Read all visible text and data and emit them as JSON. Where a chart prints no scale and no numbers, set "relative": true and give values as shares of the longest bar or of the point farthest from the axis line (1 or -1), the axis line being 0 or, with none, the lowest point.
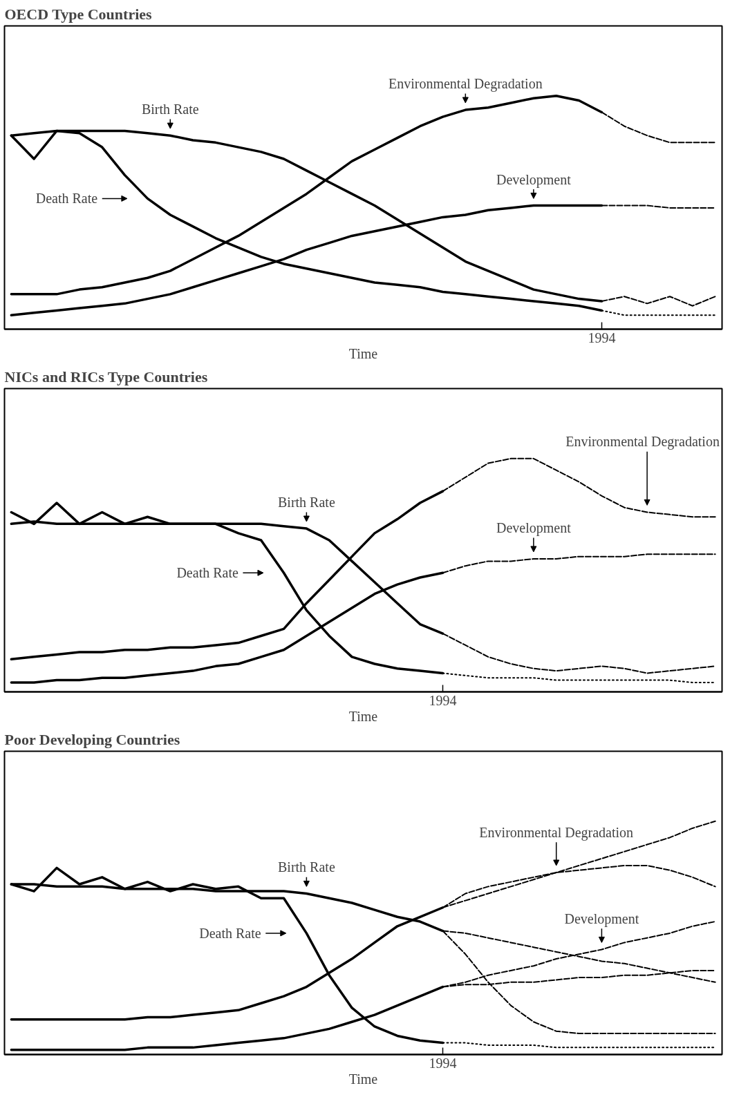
{
  "chart_data": [
    {
      "type": "line",
      "title": "OECD Type Countries",
      "xlabel": "Time",
      "relative": true,
      "annotations": [
        "1994"
      ],
      "categories": [
        null,
        null,
        null,
        null,
        null,
        null,
        null,
        null,
        null,
        null,
        null,
        null,
        null,
        null,
        null,
        null,
        null,
        null,
        null,
        null,
        null,
        null,
        null,
        null,
        null,
        null,
        null,
        null,
        null,
        null,
        null,
        null
      ],
      "series": [
        {
          "name": "Birth Rate",
          "color": "#000000",
          "line_style": "solid",
          "values": [
            0.83,
            0.84,
            0.85,
            0.85,
            0.85,
            0.85,
            0.84,
            0.83,
            0.81,
            0.8,
            0.78,
            0.76,
            0.73,
            0.68,
            0.63,
            0.58,
            0.53,
            0.47,
            0.41,
            0.35,
            0.29,
            0.25,
            0.21,
            0.17,
            0.15,
            0.13,
            0.12,
            null,
            null,
            null,
            null,
            null
          ]
        },
        {
          "name": "Death Rate",
          "color": "#000000",
          "line_style": "solid",
          "values": [
            0.83,
            0.73,
            0.85,
            0.84,
            0.78,
            0.66,
            0.56,
            0.49,
            0.44,
            0.39,
            0.35,
            0.31,
            0.28,
            0.26,
            0.24,
            0.22,
            0.2,
            0.19,
            0.18,
            0.16,
            0.15,
            0.14,
            0.13,
            0.12,
            0.11,
            0.1,
            0.08,
            null,
            null,
            null,
            null,
            null
          ]
        },
        {
          "name": "Environmental Degradation",
          "color": "#000000",
          "line_style": "solid",
          "values": [
            0.15,
            0.15,
            0.15,
            0.17,
            0.18,
            0.2,
            0.22,
            0.25,
            0.3,
            0.35,
            0.4,
            0.46,
            0.52,
            0.58,
            0.65,
            0.72,
            0.77,
            0.82,
            0.87,
            0.91,
            0.94,
            0.95,
            0.97,
            0.99,
            1,
            0.98,
            0.93,
            null,
            null,
            null,
            null,
            null
          ]
        },
        {
          "name": "Development",
          "color": "#000000",
          "line_style": "solid",
          "values": [
            0.06,
            0.07,
            0.08,
            0.09,
            0.1,
            0.11,
            0.13,
            0.15,
            0.18,
            0.21,
            0.24,
            0.27,
            0.3,
            0.34,
            0.37,
            0.4,
            0.42,
            0.44,
            0.46,
            0.48,
            0.49,
            0.51,
            0.52,
            0.53,
            0.53,
            0.53,
            0.53,
            null,
            null,
            null,
            null,
            null
          ]
        },
        {
          "color": "#000000",
          "line_style": "dashed",
          "values": [
            null,
            null,
            null,
            null,
            null,
            null,
            null,
            null,
            null,
            null,
            null,
            null,
            null,
            null,
            null,
            null,
            null,
            null,
            null,
            null,
            null,
            null,
            null,
            null,
            null,
            null,
            0.12,
            0.14,
            0.11,
            0.14,
            0.1,
            0.14
          ]
        },
        {
          "color": "#000000",
          "line_style": "dotted",
          "values": [
            null,
            null,
            null,
            null,
            null,
            null,
            null,
            null,
            null,
            null,
            null,
            null,
            null,
            null,
            null,
            null,
            null,
            null,
            null,
            null,
            null,
            null,
            null,
            null,
            null,
            null,
            0.08,
            0.06,
            0.06,
            0.06,
            0.06,
            0.06
          ]
        },
        {
          "color": "#000000",
          "line_style": "dashed",
          "values": [
            null,
            null,
            null,
            null,
            null,
            null,
            null,
            null,
            null,
            null,
            null,
            null,
            null,
            null,
            null,
            null,
            null,
            null,
            null,
            null,
            null,
            null,
            null,
            null,
            null,
            null,
            0.93,
            0.87,
            0.83,
            0.8,
            0.8,
            0.8
          ]
        },
        {
          "color": "#000000",
          "line_style": "dashed",
          "values": [
            null,
            null,
            null,
            null,
            null,
            null,
            null,
            null,
            null,
            null,
            null,
            null,
            null,
            null,
            null,
            null,
            null,
            null,
            null,
            null,
            null,
            null,
            null,
            null,
            null,
            null,
            0.53,
            0.53,
            0.53,
            0.52,
            0.52,
            0.52
          ]
        }
      ]
    },
    {
      "type": "line",
      "title": "NICs and RICs Type Countries",
      "xlabel": "Time",
      "relative": true,
      "annotations": [
        "1994"
      ],
      "categories": [
        null,
        null,
        null,
        null,
        null,
        null,
        null,
        null,
        null,
        null,
        null,
        null,
        null,
        null,
        null,
        null,
        null,
        null,
        null,
        null,
        null,
        null,
        null,
        null,
        null,
        null,
        null,
        null,
        null,
        null,
        null,
        null
      ],
      "series": [
        {
          "name": "Birth Rate",
          "color": "#000000",
          "line_style": "solid",
          "values": [
            0.72,
            0.73,
            0.72,
            0.72,
            0.72,
            0.72,
            0.72,
            0.72,
            0.72,
            0.72,
            0.72,
            0.72,
            0.71,
            0.7,
            0.65,
            0.56,
            0.47,
            0.38,
            0.29,
            0.25,
            null,
            null,
            null,
            null,
            null,
            null,
            null,
            null,
            null,
            null,
            null,
            null
          ]
        },
        {
          "name": "Death Rate",
          "color": "#000000",
          "line_style": "solid",
          "values": [
            0.77,
            0.72,
            0.81,
            0.72,
            0.77,
            0.72,
            0.75,
            0.72,
            0.72,
            0.72,
            0.68,
            0.65,
            0.51,
            0.35,
            0.24,
            0.15,
            0.12,
            0.1,
            0.09,
            0.08,
            null,
            null,
            null,
            null,
            null,
            null,
            null,
            null,
            null,
            null,
            null,
            null
          ]
        },
        {
          "color": "#000000",
          "line_style": "solid",
          "values": [
            0.14,
            0.15,
            0.16,
            0.17,
            0.17,
            0.18,
            0.18,
            0.19,
            0.19,
            0.2,
            0.21,
            0.24,
            0.27,
            0.38,
            0.48,
            0.58,
            0.68,
            0.74,
            0.81,
            0.86,
            null,
            null,
            null,
            null,
            null,
            null,
            null,
            null,
            null,
            null,
            null,
            null
          ]
        },
        {
          "color": "#000000",
          "line_style": "solid",
          "values": [
            0.04,
            0.04,
            0.05,
            0.05,
            0.06,
            0.06,
            0.07,
            0.08,
            0.09,
            0.11,
            0.12,
            0.15,
            0.18,
            0.24,
            0.3,
            0.36,
            0.42,
            0.46,
            0.49,
            0.51,
            null,
            null,
            null,
            null,
            null,
            null,
            null,
            null,
            null,
            null,
            null,
            null
          ]
        },
        {
          "color": "#000000",
          "line_style": "dashed",
          "values": [
            null,
            null,
            null,
            null,
            null,
            null,
            null,
            null,
            null,
            null,
            null,
            null,
            null,
            null,
            null,
            null,
            null,
            null,
            null,
            0.25,
            0.2,
            0.15,
            0.12,
            0.1,
            0.09,
            0.1,
            0.11,
            0.1,
            0.08,
            0.09,
            0.1,
            0.11
          ]
        },
        {
          "color": "#000000",
          "line_style": "dotted",
          "values": [
            null,
            null,
            null,
            null,
            null,
            null,
            null,
            null,
            null,
            null,
            null,
            null,
            null,
            null,
            null,
            null,
            null,
            null,
            null,
            0.08,
            0.07,
            0.06,
            0.06,
            0.06,
            0.05,
            0.05,
            0.05,
            0.05,
            0.05,
            0.05,
            0.04,
            0.04
          ]
        },
        {
          "name": "Environmental Degradation",
          "color": "#000000",
          "line_style": "dashed",
          "values": [
            null,
            null,
            null,
            null,
            null,
            null,
            null,
            null,
            null,
            null,
            null,
            null,
            null,
            null,
            null,
            null,
            null,
            null,
            null,
            0.86,
            0.92,
            0.98,
            1,
            1,
            0.95,
            0.9,
            0.84,
            0.79,
            0.77,
            0.76,
            0.75,
            0.75
          ]
        },
        {
          "name": "Development",
          "color": "#000000",
          "line_style": "dashed",
          "values": [
            null,
            null,
            null,
            null,
            null,
            null,
            null,
            null,
            null,
            null,
            null,
            null,
            null,
            null,
            null,
            null,
            null,
            null,
            null,
            0.51,
            0.54,
            0.56,
            0.56,
            0.57,
            0.57,
            0.58,
            0.58,
            0.58,
            0.59,
            0.59,
            0.59,
            0.59
          ]
        }
      ]
    },
    {
      "type": "line",
      "title": "Poor Developing Countries",
      "xlabel": "Time",
      "relative": true,
      "annotations": [
        "1994"
      ],
      "categories": [
        null,
        null,
        null,
        null,
        null,
        null,
        null,
        null,
        null,
        null,
        null,
        null,
        null,
        null,
        null,
        null,
        null,
        null,
        null,
        null,
        null,
        null,
        null,
        null,
        null,
        null,
        null,
        null,
        null,
        null,
        null,
        null
      ],
      "series": [
        {
          "name": "Birth Rate",
          "color": "#000000",
          "line_style": "solid",
          "values": [
            0.73,
            0.73,
            0.72,
            0.72,
            0.72,
            0.71,
            0.71,
            0.71,
            0.71,
            0.7,
            0.7,
            0.7,
            0.7,
            0.69,
            0.67,
            0.65,
            0.62,
            0.59,
            0.57,
            0.53,
            null,
            null,
            null,
            null,
            null,
            null,
            null,
            null,
            null,
            null,
            null,
            null
          ]
        },
        {
          "name": "Death Rate",
          "color": "#000000",
          "line_style": "solid",
          "values": [
            0.73,
            0.7,
            0.8,
            0.73,
            0.76,
            0.71,
            0.74,
            0.7,
            0.73,
            0.71,
            0.72,
            0.67,
            0.67,
            0.52,
            0.34,
            0.2,
            0.12,
            0.08,
            0.06,
            0.05,
            null,
            null,
            null,
            null,
            null,
            null,
            null,
            null,
            null,
            null,
            null,
            null
          ]
        },
        {
          "color": "#000000",
          "line_style": "solid",
          "values": [
            0.15,
            0.15,
            0.15,
            0.15,
            0.15,
            0.15,
            0.16,
            0.16,
            0.17,
            0.18,
            0.19,
            0.22,
            0.25,
            0.29,
            0.35,
            0.41,
            0.48,
            0.55,
            0.59,
            0.63,
            null,
            null,
            null,
            null,
            null,
            null,
            null,
            null,
            null,
            null,
            null,
            null
          ]
        },
        {
          "color": "#000000",
          "line_style": "solid",
          "values": [
            0.02,
            0.02,
            0.02,
            0.02,
            0.02,
            0.02,
            0.03,
            0.03,
            0.03,
            0.04,
            0.05,
            0.06,
            0.07,
            0.09,
            0.11,
            0.14,
            0.17,
            0.21,
            0.25,
            0.29,
            null,
            null,
            null,
            null,
            null,
            null,
            null,
            null,
            null,
            null,
            null,
            null
          ]
        },
        {
          "color": "#000000",
          "line_style": "dashed",
          "values": [
            null,
            null,
            null,
            null,
            null,
            null,
            null,
            null,
            null,
            null,
            null,
            null,
            null,
            null,
            null,
            null,
            null,
            null,
            null,
            0.53,
            0.52,
            0.5,
            0.48,
            0.46,
            0.44,
            0.42,
            0.4,
            0.39,
            0.37,
            0.35,
            0.33,
            0.31
          ]
        },
        {
          "color": "#000000",
          "line_style": "dashed",
          "values": [
            null,
            null,
            null,
            null,
            null,
            null,
            null,
            null,
            null,
            null,
            null,
            null,
            null,
            null,
            null,
            null,
            null,
            null,
            null,
            0.53,
            0.43,
            0.31,
            0.21,
            0.14,
            0.1,
            0.09,
            0.09,
            0.09,
            0.09,
            0.09,
            0.09,
            0.09
          ]
        },
        {
          "color": "#000000",
          "line_style": "dotted",
          "values": [
            null,
            null,
            null,
            null,
            null,
            null,
            null,
            null,
            null,
            null,
            null,
            null,
            null,
            null,
            null,
            null,
            null,
            null,
            null,
            0.05,
            0.05,
            0.04,
            0.04,
            0.04,
            0.03,
            0.03,
            0.03,
            0.03,
            0.03,
            0.03,
            0.03,
            0.03
          ]
        },
        {
          "name": "Environmental Degradation",
          "color": "#000000",
          "line_style": "dashed",
          "values": [
            null,
            null,
            null,
            null,
            null,
            null,
            null,
            null,
            null,
            null,
            null,
            null,
            null,
            null,
            null,
            null,
            null,
            null,
            null,
            0.63,
            0.66,
            0.69,
            0.72,
            0.75,
            0.78,
            0.81,
            0.84,
            0.87,
            0.9,
            0.93,
            0.97,
            1
          ]
        },
        {
          "color": "#000000",
          "line_style": "dashed",
          "values": [
            null,
            null,
            null,
            null,
            null,
            null,
            null,
            null,
            null,
            null,
            null,
            null,
            null,
            null,
            null,
            null,
            null,
            null,
            null,
            0.63,
            0.69,
            0.72,
            0.74,
            0.76,
            0.78,
            0.79,
            0.8,
            0.81,
            0.81,
            0.79,
            0.76,
            0.72
          ]
        },
        {
          "name": "Development",
          "color": "#000000",
          "line_style": "dashed",
          "values": [
            null,
            null,
            null,
            null,
            null,
            null,
            null,
            null,
            null,
            null,
            null,
            null,
            null,
            null,
            null,
            null,
            null,
            null,
            null,
            0.29,
            0.31,
            0.34,
            0.36,
            0.38,
            0.41,
            0.43,
            0.45,
            0.48,
            0.5,
            0.52,
            0.55,
            0.57
          ]
        },
        {
          "color": "#000000",
          "line_style": "dashed",
          "values": [
            null,
            null,
            null,
            null,
            null,
            null,
            null,
            null,
            null,
            null,
            null,
            null,
            null,
            null,
            null,
            null,
            null,
            null,
            null,
            0.29,
            0.3,
            0.3,
            0.31,
            0.31,
            0.32,
            0.33,
            0.33,
            0.34,
            0.34,
            0.35,
            0.36,
            0.36
          ]
        }
      ]
    }
  ]
}
